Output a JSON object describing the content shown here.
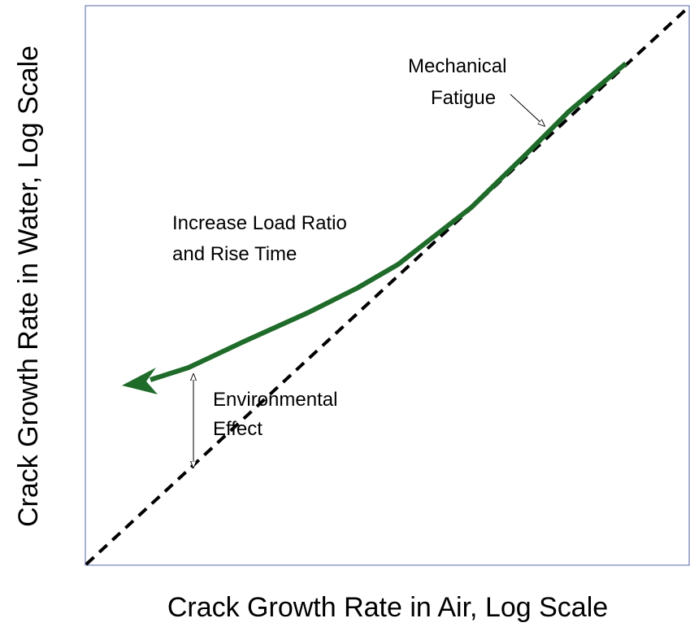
{
  "x_axis_label": "Crack Growth Rate in Air, Log Scale",
  "y_axis_label": "Crack Growth Rate in Water, Log Scale",
  "annotations": [
    {
      "lines": [
        "Mechanical",
        "Fatigue"
      ]
    },
    {
      "lines": [
        "Increase Load Ratio",
        "and Rise Time"
      ]
    },
    {
      "lines": [
        "Environmental",
        "Effect"
      ]
    }
  ]
}
